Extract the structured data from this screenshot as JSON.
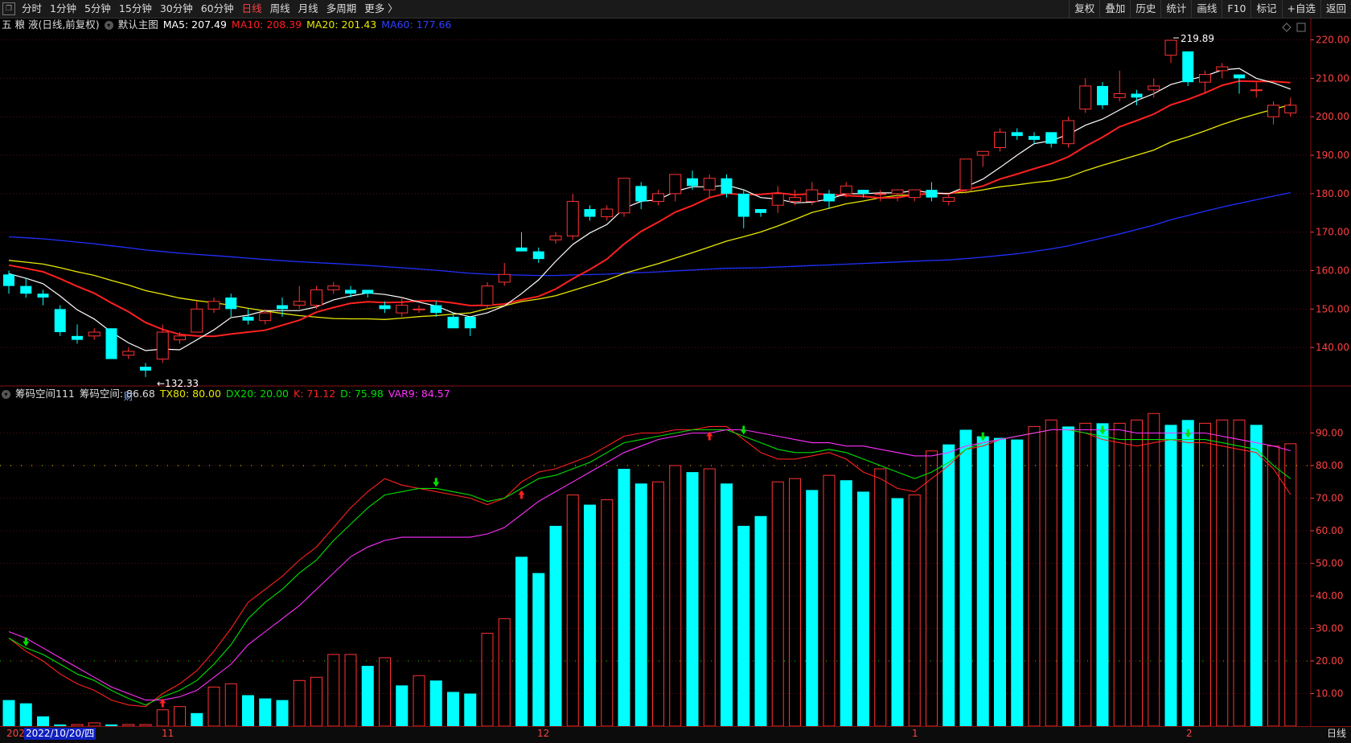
{
  "toolbar": {
    "periods": [
      {
        "label": "分时",
        "active": false
      },
      {
        "label": "1分钟",
        "active": false
      },
      {
        "label": "5分钟",
        "active": false
      },
      {
        "label": "15分钟",
        "active": false
      },
      {
        "label": "30分钟",
        "active": false
      },
      {
        "label": "60分钟",
        "active": false
      },
      {
        "label": "日线",
        "active": true
      },
      {
        "label": "周线",
        "active": false
      },
      {
        "label": "月线",
        "active": false
      },
      {
        "label": "多周期",
        "active": false
      },
      {
        "label": "更多 〉",
        "active": false
      }
    ],
    "right_buttons": [
      "复权",
      "叠加",
      "历史",
      "统计",
      "画线",
      "F10",
      "标记",
      "+自选",
      "返回"
    ]
  },
  "main_legend": {
    "stock": "五 粮 液(日线,前复权)",
    "template": "默认主图",
    "ma5": "MA5: 207.49",
    "ma10": "MA10: 208.39",
    "ma20": "MA20: 201.43",
    "ma60": "MA60: 177.66"
  },
  "sub_legend": {
    "name": "筹码空间111",
    "space": "筹码空间: 86.68",
    "tx80": "TX80: 80.00",
    "dx20": "DX20: 20.00",
    "k": "K: 71.12",
    "d": "D: 75.98",
    "var9": "VAR9: 84.57"
  },
  "annotations": {
    "high": "219.89",
    "low": "132.33",
    "fin_marker": "财"
  },
  "colors": {
    "up": "#ff3232",
    "down": "#00ffff",
    "ma5": "#ffffff",
    "ma10": "#ff2020",
    "ma20": "#e8e800",
    "ma60": "#2030ff",
    "k": "#ff2020",
    "d": "#00e000",
    "var9": "#ff30ff"
  },
  "bottom": {
    "date_prefix": "202",
    "cursor_date": "2022/10/20/四",
    "months": [
      "11",
      "12",
      "1",
      "2"
    ],
    "period": "日线"
  },
  "chart_data": [
    {
      "type": "candlestick",
      "title": "五 粮 液(日线,前复权)",
      "y_ticks": [
        140.0,
        150.0,
        160.0,
        170.0,
        180.0,
        190.0,
        200.0,
        210.0,
        220.0
      ],
      "ylim": [
        130,
        222
      ],
      "candles": [
        [
          159,
          156,
          160,
          154
        ],
        [
          156,
          154,
          158,
          153
        ],
        [
          154,
          153,
          155,
          151
        ],
        [
          150,
          144,
          151,
          143
        ],
        [
          143,
          142,
          146,
          141
        ],
        [
          143,
          144,
          145,
          142
        ],
        [
          145,
          137,
          145,
          137
        ],
        [
          138,
          139,
          140,
          137
        ],
        [
          135,
          134,
          136,
          132.33
        ],
        [
          137,
          144,
          146,
          136
        ],
        [
          142,
          143,
          144,
          141
        ],
        [
          144,
          150,
          152,
          144
        ],
        [
          150,
          152,
          153,
          149
        ],
        [
          153,
          150,
          154,
          148
        ],
        [
          148,
          147,
          150,
          146
        ],
        [
          147,
          149,
          150,
          146
        ],
        [
          151,
          150,
          153,
          148
        ],
        [
          151,
          152,
          156,
          150
        ],
        [
          151,
          155,
          156,
          150
        ],
        [
          155,
          156,
          157,
          154
        ],
        [
          155,
          154,
          156,
          153
        ],
        [
          155,
          154,
          155,
          153
        ],
        [
          151,
          150,
          152,
          149
        ],
        [
          149,
          151,
          153,
          148
        ],
        [
          150,
          150,
          151,
          149
        ],
        [
          151,
          149,
          152,
          148
        ],
        [
          148,
          145,
          149,
          147
        ],
        [
          148,
          145,
          148,
          143
        ],
        [
          151,
          156,
          157,
          150
        ],
        [
          157,
          159,
          162,
          156
        ],
        [
          166,
          165,
          170,
          165
        ],
        [
          165,
          163,
          166,
          162
        ],
        [
          168,
          169,
          170,
          167
        ],
        [
          169,
          178,
          180,
          168
        ],
        [
          176,
          174,
          177,
          173
        ],
        [
          174,
          176,
          177,
          173
        ],
        [
          175,
          184,
          184,
          174
        ],
        [
          182,
          178,
          183,
          176
        ],
        [
          178,
          180,
          181,
          177
        ],
        [
          180,
          185,
          185,
          178
        ],
        [
          184,
          182,
          186,
          181
        ],
        [
          181,
          184,
          185,
          179
        ],
        [
          184,
          180,
          185,
          179
        ],
        [
          180,
          174,
          181,
          171
        ],
        [
          176,
          175,
          176,
          174
        ],
        [
          177,
          180,
          182,
          175
        ],
        [
          178,
          179,
          181,
          177
        ],
        [
          178,
          181,
          183,
          177
        ],
        [
          180,
          178,
          181,
          176
        ],
        [
          180,
          182,
          183,
          179
        ],
        [
          181,
          180,
          181,
          179
        ],
        [
          180,
          180,
          181,
          178
        ],
        [
          180,
          181,
          181,
          178
        ],
        [
          179,
          181,
          181,
          178
        ],
        [
          181,
          179,
          183,
          178
        ],
        [
          178,
          179,
          180,
          177
        ],
        [
          181,
          189,
          189,
          180
        ],
        [
          190,
          191,
          191,
          187
        ],
        [
          192,
          196,
          197,
          191
        ],
        [
          196,
          195,
          197,
          194
        ],
        [
          195,
          194,
          196,
          193
        ],
        [
          196,
          193,
          196,
          192
        ],
        [
          193,
          199,
          200,
          192
        ],
        [
          202,
          208,
          210,
          201
        ],
        [
          208,
          203,
          209,
          202
        ],
        [
          205,
          206,
          212,
          204
        ],
        [
          206,
          205,
          207,
          203
        ],
        [
          207,
          208,
          210,
          205
        ],
        [
          216,
          219.89,
          219.89,
          214
        ],
        [
          217,
          209,
          217,
          208
        ],
        [
          209,
          211,
          212,
          206
        ],
        [
          212,
          213,
          214,
          210
        ],
        [
          211,
          210,
          211,
          206
        ],
        [
          207,
          207,
          209,
          205
        ],
        [
          200,
          203,
          204,
          198
        ],
        [
          201,
          203,
          205,
          200
        ]
      ]
    },
    {
      "type": "bar",
      "title": "筹码空间111",
      "y_ticks": [
        10.0,
        20.0,
        30.0,
        40.0,
        50.0,
        60.0,
        70.0,
        80.0,
        90.0
      ],
      "ylim": [
        0,
        100
      ],
      "values": [
        8,
        7,
        3,
        0.5,
        0.5,
        1,
        0.5,
        0.5,
        0.5,
        5,
        6,
        4,
        12,
        13,
        9.5,
        8.5,
        8,
        14,
        15,
        22,
        22,
        18.5,
        21,
        12.5,
        15.5,
        14,
        10.5,
        10,
        28.5,
        33,
        52,
        47,
        61.5,
        71,
        68,
        69.5,
        79,
        74.5,
        75,
        80,
        78,
        79,
        74.5,
        61.5,
        64.5,
        75,
        76,
        72.5,
        77,
        75.5,
        72,
        79,
        70,
        71,
        84.5,
        86.5,
        91,
        89,
        88.5,
        88,
        92,
        94,
        92,
        93,
        93,
        93,
        94,
        96,
        92.5,
        94,
        93,
        94,
        94,
        92.5,
        86,
        86.7
      ],
      "series": [
        {
          "name": "K",
          "values": [
            27,
            23,
            20,
            16,
            13,
            11,
            8,
            6.5,
            6,
            10,
            13,
            17,
            23,
            30,
            38,
            42,
            46,
            51,
            55,
            61,
            67,
            72,
            76,
            74,
            73,
            72,
            71,
            70,
            68,
            70,
            75,
            78,
            79,
            81,
            83,
            86,
            89,
            90,
            90,
            91,
            91,
            92,
            92,
            88,
            84,
            82,
            82,
            83,
            84,
            82,
            78,
            76,
            73,
            72,
            76,
            80,
            85,
            86,
            88,
            89,
            90,
            91,
            91,
            90,
            88,
            87,
            86,
            87,
            88,
            87,
            87,
            86,
            85,
            84,
            79,
            71.12
          ]
        },
        {
          "name": "D",
          "values": [
            27,
            24,
            22,
            19,
            16,
            14,
            11,
            8.5,
            6.5,
            9,
            11,
            14,
            19,
            25,
            33,
            38,
            42,
            47,
            51,
            57,
            62,
            67,
            71,
            72,
            73,
            73,
            72,
            71,
            69,
            70,
            73,
            76,
            77,
            79,
            81,
            84,
            87,
            88,
            89,
            90,
            91,
            91,
            91,
            89,
            87,
            85,
            84,
            84,
            85,
            84,
            82,
            80,
            78,
            76,
            78,
            81,
            85,
            87,
            88,
            89,
            90,
            91,
            91,
            90,
            89,
            88,
            88,
            88,
            88,
            88,
            88,
            87,
            86,
            85,
            80,
            75.98
          ]
        },
        {
          "name": "VAR9",
          "values": [
            29,
            27,
            24,
            21,
            18,
            15,
            12,
            10,
            8,
            8,
            9,
            11,
            15,
            19,
            25,
            29,
            33,
            37,
            42,
            47,
            52,
            55,
            57,
            58,
            58,
            58,
            58,
            58,
            59,
            61,
            65,
            69,
            72,
            75,
            78,
            81,
            84,
            86,
            88,
            89,
            90,
            90,
            91,
            91,
            90,
            89,
            88,
            87,
            87,
            86,
            86,
            85,
            84,
            83,
            83,
            84,
            86,
            87,
            88,
            89,
            90,
            91,
            91,
            91,
            91,
            91,
            90,
            90,
            90,
            90,
            90,
            89,
            88,
            87,
            86,
            84.57
          ]
        }
      ]
    }
  ]
}
